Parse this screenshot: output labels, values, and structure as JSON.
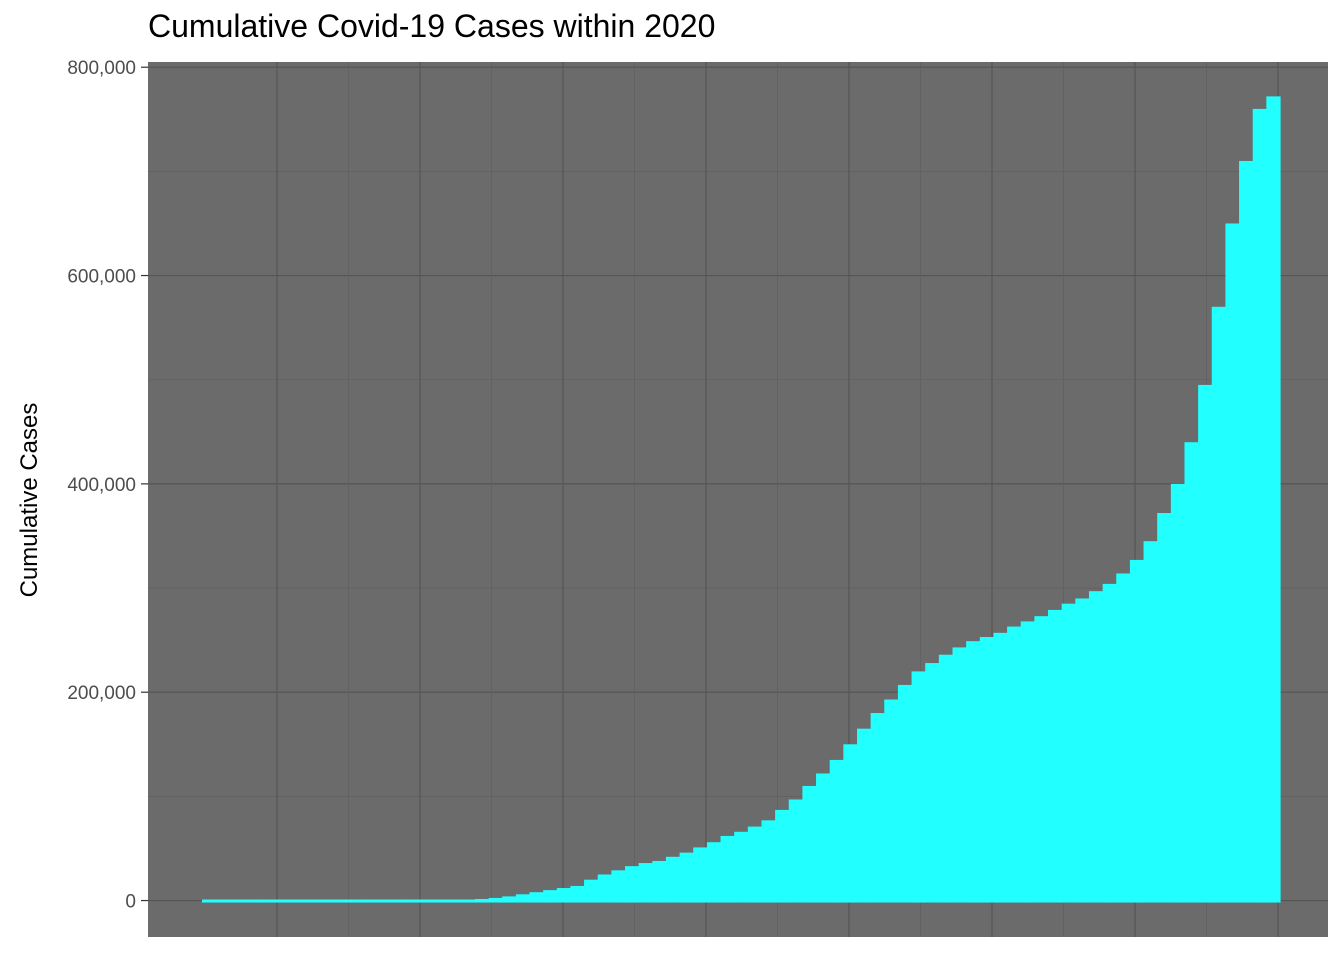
{
  "chart_data": {
    "type": "bar",
    "title": "Cumulative Covid-19 Cases within 2020",
    "xlabel": "",
    "ylabel": "Cumulative Cases",
    "ylim": [
      -35000,
      805000
    ],
    "y_ticks": [
      0,
      200000,
      400000,
      600000,
      800000
    ],
    "y_tick_labels": [
      "0",
      "200,000",
      "400,000",
      "600,000",
      "800,000"
    ],
    "x_tick_labels_shown": false,
    "grid": true,
    "colors": {
      "panel": "#6b6b6b",
      "bars": "#22ffff",
      "grid_major": "#555555",
      "grid_minor": "#5f5f5f"
    },
    "series": [
      {
        "values": [
          1000,
          1000,
          1000,
          1000,
          1000,
          1000,
          1000,
          1000,
          1000,
          1000,
          1000,
          1000,
          1000,
          1000,
          1000,
          1000,
          1000,
          1000,
          1000,
          1000,
          1500,
          2500,
          4000,
          6000,
          8000,
          10000,
          12000,
          14000,
          20000,
          25000,
          29000,
          33000,
          36000,
          38000,
          42000,
          46000,
          51000,
          56000,
          62000,
          66000,
          71000,
          77000,
          87000,
          97000,
          110000,
          122000,
          135000,
          150000,
          165000,
          180000,
          193000,
          207000,
          220000,
          228000,
          236000,
          243000,
          249000,
          253000,
          257000,
          263000,
          268000,
          273000,
          279000,
          285000,
          290000,
          297000,
          304000,
          314000,
          327000,
          345000,
          372000,
          400000,
          440000,
          495000,
          570000,
          650000,
          710000,
          760000,
          772000
        ]
      }
    ]
  }
}
